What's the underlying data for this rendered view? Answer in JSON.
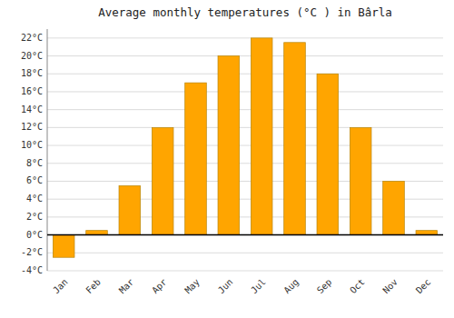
{
  "chart_data": {
    "type": "bar",
    "title": "Average monthly temperatures (°C ) in Bârla",
    "categories": [
      "Jan",
      "Feb",
      "Mar",
      "Apr",
      "May",
      "Jun",
      "Jul",
      "Aug",
      "Sep",
      "Oct",
      "Nov",
      "Dec"
    ],
    "values": [
      -2.5,
      0.5,
      5.5,
      12.0,
      17.0,
      20.0,
      22.0,
      21.5,
      18.0,
      12.0,
      6.0,
      0.5
    ],
    "color": "#FFA500",
    "ylim": [
      -4,
      23
    ],
    "yticks": [
      {
        "value": -4,
        "label": "-4°C"
      },
      {
        "value": -2,
        "label": "-2°C"
      },
      {
        "value": 0,
        "label": "0°C"
      },
      {
        "value": 2,
        "label": "2°C"
      },
      {
        "value": 4,
        "label": "4°C"
      },
      {
        "value": 6,
        "label": "6°C"
      },
      {
        "value": 8,
        "label": "8°C"
      },
      {
        "value": 10,
        "label": "10°C"
      },
      {
        "value": 12,
        "label": "12°C"
      },
      {
        "value": 14,
        "label": "14°C"
      },
      {
        "value": 16,
        "label": "16°C"
      },
      {
        "value": 18,
        "label": "18°C"
      },
      {
        "value": 20,
        "label": "20°C"
      },
      {
        "value": 22,
        "label": "22°C"
      }
    ],
    "grid": true
  }
}
